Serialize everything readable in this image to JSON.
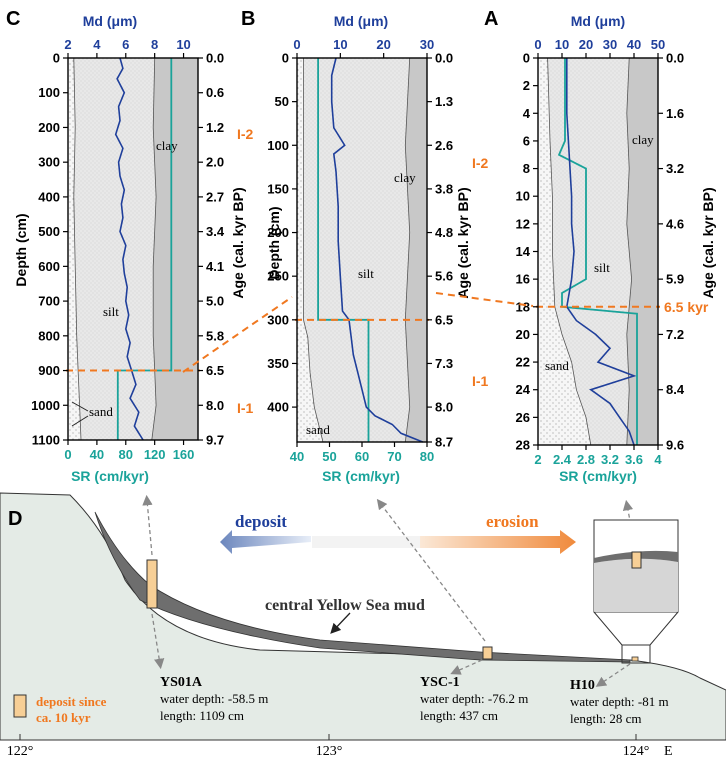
{
  "colors": {
    "md_line": "#1f3f9b",
    "sr_line": "#1aa39a",
    "orange": "#f07820",
    "sand_fill": "#f4f4f4",
    "silt_fill": "#e6e6e6",
    "clay_fill": "#c8c8c8",
    "mud_fill": "#6e6e6e",
    "seafloor_fill": "#e4ebe6",
    "core_fill": "#f7cf96",
    "top_axis_text": "#1f3f9b",
    "bottom_axis_text": "#1aa39a"
  },
  "chart_data": [
    {
      "panel": "C",
      "type": "line",
      "top_axis": {
        "label": "Md (μm)",
        "ticks": [
          2,
          4,
          6,
          8,
          10
        ],
        "range": [
          2,
          11
        ]
      },
      "bottom_axis": {
        "label": "SR (cm/kyr)",
        "ticks": [
          0,
          40,
          80,
          120,
          160
        ],
        "range": [
          0,
          180
        ]
      },
      "left_axis": {
        "label": "Depth (cm)",
        "ticks": [
          0,
          100,
          200,
          300,
          400,
          500,
          600,
          700,
          800,
          900,
          1000,
          1100
        ],
        "range": [
          0,
          1100
        ]
      },
      "right_axis": {
        "label": "Age (cal. kyr BP)",
        "ticks": [
          "0.0",
          "0.6",
          "1.2",
          "2.0",
          "2.7",
          "3.4",
          "4.1",
          "5.0",
          "5.8",
          "6.5",
          "8.0",
          "9.7"
        ]
      },
      "zones": [
        "I-2",
        "I-1"
      ],
      "zone_labels": [
        "silt",
        "clay",
        "sand"
      ],
      "boundary_depth": 900,
      "md_series": {
        "depth": [
          0,
          30,
          60,
          100,
          140,
          180,
          220,
          260,
          300,
          340,
          380,
          420,
          460,
          500,
          540,
          580,
          620,
          660,
          700,
          740,
          780,
          820,
          860,
          900,
          940,
          980,
          1020,
          1060,
          1100
        ],
        "values": [
          5.6,
          5.8,
          5.4,
          5.9,
          5.5,
          5.6,
          5.3,
          5.8,
          5.5,
          5.6,
          5.9,
          5.7,
          5.8,
          5.6,
          6.0,
          5.8,
          5.9,
          6.1,
          6.0,
          6.2,
          6.0,
          6.3,
          6.1,
          6.4,
          6.7,
          6.3,
          6.9,
          6.6,
          7.2
        ]
      },
      "sand_series": {
        "depth": [
          0,
          200,
          400,
          600,
          800,
          900,
          1000,
          1100
        ],
        "values": [
          2.4,
          2.5,
          2.4,
          2.5,
          2.6,
          2.7,
          2.8,
          2.9
        ]
      },
      "silt_series": {
        "depth": [
          0,
          200,
          400,
          600,
          800,
          900,
          1000,
          1100
        ],
        "values": [
          8.0,
          7.9,
          8.1,
          7.9,
          7.9,
          8.0,
          8.1,
          7.8
        ]
      },
      "sr_series": {
        "depth": [
          0,
          900,
          900,
          1100
        ],
        "values": [
          143,
          143,
          69,
          69
        ]
      }
    },
    {
      "panel": "B",
      "type": "line",
      "top_axis": {
        "label": "Md (μm)",
        "ticks": [
          0,
          10,
          20,
          30
        ],
        "range": [
          0,
          30
        ]
      },
      "bottom_axis": {
        "label": "SR (cm/kyr)",
        "ticks": [
          40,
          50,
          60,
          70,
          80
        ],
        "range": [
          40,
          80
        ]
      },
      "left_axis": {
        "label": "Depth (cm)",
        "ticks": [
          0,
          50,
          100,
          150,
          200,
          250,
          300,
          350,
          400
        ],
        "range": [
          0,
          440
        ]
      },
      "right_axis": {
        "label": "Age (cal. kyr BP)",
        "ticks": [
          "0.0",
          "1.3",
          "2.6",
          "3.8",
          "4.8",
          "5.6",
          "6.5",
          "7.3",
          "8.0",
          "8.7"
        ]
      },
      "zone_labels": [
        "clay",
        "silt",
        "sand"
      ],
      "boundary_depth": 300,
      "md_series": {
        "depth": [
          0,
          20,
          50,
          80,
          100,
          110,
          130,
          170,
          210,
          250,
          290,
          300,
          320,
          340,
          360,
          380,
          400,
          410,
          420,
          430,
          440
        ],
        "values": [
          9,
          8,
          8,
          8.5,
          11,
          8.5,
          9,
          9.5,
          9.5,
          10,
          10.5,
          12,
          12.5,
          13,
          14,
          15,
          16,
          18,
          22,
          24,
          29
        ]
      },
      "sand_series": {
        "depth": [
          0,
          300,
          320,
          360,
          400,
          440
        ],
        "values": [
          1.5,
          1.5,
          2.5,
          3,
          4,
          6
        ]
      },
      "silt_series": {
        "depth": [
          0,
          100,
          200,
          300,
          400,
          440
        ],
        "values": [
          26,
          25,
          26,
          25,
          26,
          25
        ]
      },
      "sr_series": {
        "depth": [
          0,
          300,
          300,
          440
        ],
        "values": [
          46.5,
          46.5,
          62,
          62
        ]
      }
    },
    {
      "panel": "A",
      "type": "line",
      "top_axis": {
        "label": "Md (μm)",
        "ticks": [
          0,
          10,
          20,
          30,
          40,
          50
        ],
        "range": [
          0,
          50
        ]
      },
      "bottom_axis": {
        "label": "SR (cm/kyr)",
        "ticks": [
          2,
          2.4,
          2.8,
          3.2,
          3.6,
          4
        ],
        "range": [
          2,
          4
        ]
      },
      "left_axis": {
        "label": "",
        "ticks": [
          0,
          2,
          4,
          6,
          8,
          10,
          12,
          14,
          16,
          18,
          20,
          22,
          24,
          26,
          28
        ],
        "range": [
          0,
          28
        ]
      },
      "right_axis": {
        "label": "Age (cal. kyr BP)",
        "ticks": [
          "0.0",
          "1.6",
          "3.2",
          "4.6",
          "5.9",
          "7.2",
          "8.4",
          "9.6"
        ]
      },
      "zone_labels": [
        "clay",
        "silt",
        "sand"
      ],
      "boundary_depth": 18,
      "md_series": {
        "depth": [
          0,
          4,
          7,
          10,
          12,
          14,
          16,
          18,
          19,
          20,
          21,
          22,
          23,
          24,
          25,
          26,
          27,
          28
        ],
        "values": [
          12,
          12,
          13,
          14,
          14,
          15,
          14,
          12,
          16,
          24,
          30,
          25,
          40,
          22,
          30,
          34,
          38,
          40
        ]
      },
      "sand_series": {
        "depth": [
          0,
          6,
          10,
          14,
          18,
          20,
          22,
          24,
          26,
          28
        ],
        "values": [
          4,
          5,
          6,
          6,
          7,
          10,
          14,
          16,
          20,
          22
        ]
      },
      "silt_series": {
        "depth": [
          0,
          4,
          8,
          12,
          16,
          20,
          24,
          28
        ],
        "values": [
          38,
          37,
          38,
          37,
          39,
          37,
          38,
          37
        ]
      },
      "sr_series": {
        "depth": [
          0,
          6,
          7,
          8,
          16,
          17,
          18,
          18.5,
          28
        ],
        "values": [
          2.45,
          2.45,
          2.35,
          2.8,
          2.8,
          2.4,
          2.4,
          3.65,
          3.65
        ]
      }
    }
  ],
  "panels": {
    "c_label": "C",
    "b_label": "B",
    "a_label": "A",
    "md_label": "Md (μm)",
    "sr_label": "SR (cm/kyr)",
    "depth_label": "Depth (cm)",
    "age_label": "Age (cal. kyr BP)",
    "silt": "silt",
    "clay": "clay",
    "sand": "sand",
    "zone_upper": "I-2",
    "zone_lower": "I-1",
    "boundary_age": "6.5 kyr"
  },
  "section": {
    "label": "D",
    "deposit": "deposit",
    "erosion": "erosion",
    "mud_label": "central Yellow Sea mud",
    "legend": "deposit since ca. 10 kyr",
    "legend_line1": "deposit since",
    "legend_line2": "ca. 10 kyr",
    "cores": [
      {
        "name": "YS01A",
        "depth": "water depth: -58.5 m",
        "length": "length: 1109 cm"
      },
      {
        "name": "YSC-1",
        "depth": "water depth: -76.2 m",
        "length": "length: 437 cm"
      },
      {
        "name": "H10",
        "depth": "water depth: -81 m",
        "length": "length: 28 cm"
      }
    ],
    "longitudes": [
      "122°",
      "123°",
      "124°"
    ],
    "east": "E"
  }
}
